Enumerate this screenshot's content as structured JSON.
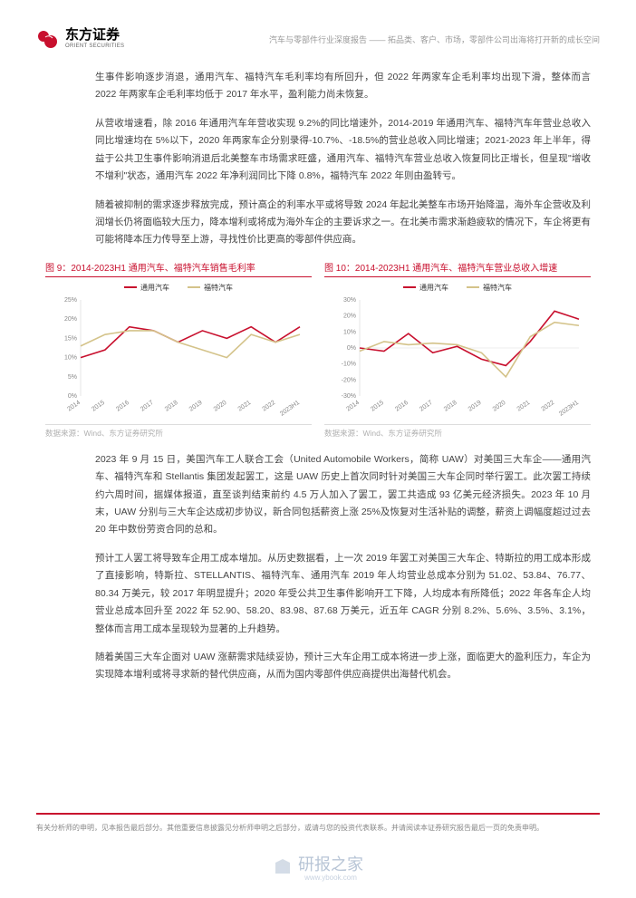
{
  "header": {
    "logo_cn": "东方证券",
    "logo_en": "ORIENT SECURITIES",
    "subtitle": "汽车与零部件行业深度报告 —— 拓品类、客户、市场，零部件公司出海将打开新的成长空间"
  },
  "paragraphs": {
    "p1": "生事件影响逐步消退，通用汽车、福特汽车毛利率均有所回升，但 2022 年两家车企毛利率均出现下滑，整体而言 2022 年两家车企毛利率均低于 2017 年水平，盈利能力尚未恢复。",
    "p2": "从营收增速看，除 2016 年通用汽车年营收实现 9.2%的同比增速外，2014-2019 年通用汽车、福特汽车年营业总收入同比增速均在 5%以下，2020 年两家车企分别录得-10.7%、-18.5%的营业总收入同比增速；2021-2023 年上半年，得益于公共卫生事件影响消退后北美整车市场需求旺盛，通用汽车、福特汽车营业总收入恢复同比正增长，但呈现\"增收不增利\"状态，通用汽车 2022 年净利润同比下降 0.8%，福特汽车 2022 年则由盈转亏。",
    "p3": "随着被抑制的需求逐步释放完成，预计高企的利率水平或将导致 2024 年起北美整车市场开始降温，海外车企营收及利润增长仍将面临较大压力，降本增利或将成为海外车企的主要诉求之一。在北美市需求渐趋疲软的情况下，车企将更有可能将降本压力传导至上游，寻找性价比更高的零部件供应商。",
    "p4": "2023 年 9 月 15 日，美国汽车工人联合工会（United Automobile Workers，简称 UAW）对美国三大车企——通用汽车、福特汽车和 Stellantis 集团发起罢工，这是 UAW 历史上首次同时针对美国三大车企同时举行罢工。此次罢工持续约六周时间，据媒体报道，直至谈判结束前约 4.5 万人加入了罢工，罢工共造成 93 亿美元经济损失。2023 年 10 月末，UAW 分别与三大车企达成初步协议，新合同包括薪资上涨 25%及恢复对生活补贴的调整，薪资上调幅度超过过去 20 年中数份劳资合同的总和。",
    "p5": "预计工人罢工将导致车企用工成本增加。从历史数据看，上一次 2019 年罢工对美国三大车企、特斯拉的用工成本形成了直接影响，特斯拉、STELLANTIS、福特汽车、通用汽车 2019 年人均营业总成本分别为 51.02、53.84、76.77、80.34 万美元，较 2017 年明显提升；2020 年受公共卫生事件影响开工下降，人均成本有所降低；2022 年各车企人均营业总成本回升至 2022 年 52.90、58.20、83.98、87.68 万美元，近五年 CAGR 分别 8.2%、5.6%、3.5%、3.1%，整体而言用工成本呈现较为显著的上升趋势。",
    "p6": "随着美国三大车企面对 UAW 涨薪需求陆续妥协，预计三大车企用工成本将进一步上涨，面临更大的盈利压力，车企为实现降本增利或将寻求新的替代供应商，从而为国内零部件供应商提供出海替代机会。"
  },
  "chart_left": {
    "title": "图 9：2014-2023H1 通用汽车、福特汽车销售毛利率",
    "source": "数据来源：Wind、东方证券研究所",
    "type": "line",
    "x_labels": [
      "2014",
      "2015",
      "2016",
      "2017",
      "2018",
      "2019",
      "2020",
      "2021",
      "2022",
      "2023H1"
    ],
    "y_ticks": [
      "0%",
      "5%",
      "10%",
      "15%",
      "20%",
      "25%"
    ],
    "y_min": 0,
    "y_max": 25,
    "series": [
      {
        "name": "通用汽车",
        "color": "#c8102e",
        "values": [
          10,
          12,
          18,
          17,
          14,
          17,
          15,
          18,
          14,
          18
        ]
      },
      {
        "name": "福特汽车",
        "color": "#d4c38a",
        "values": [
          13,
          16,
          17,
          17,
          14,
          12,
          10,
          16,
          14,
          16
        ]
      }
    ],
    "background_color": "#ffffff",
    "tick_fontsize": 7,
    "line_width": 1.6
  },
  "chart_right": {
    "title": "图 10：2014-2023H1 通用汽车、福特汽车营业总收入增速",
    "source": "数据来源：Wind、东方证券研究所",
    "type": "line",
    "x_labels": [
      "2014",
      "2015",
      "2016",
      "2017",
      "2018",
      "2019",
      "2020",
      "2021",
      "2022",
      "2023H1"
    ],
    "y_ticks": [
      "-30%",
      "-20%",
      "-10%",
      "0%",
      "10%",
      "20%",
      "30%"
    ],
    "y_min": -30,
    "y_max": 30,
    "series": [
      {
        "name": "通用汽车",
        "color": "#c8102e",
        "values": [
          0,
          -2,
          9,
          -3,
          1,
          -7,
          -11,
          4,
          23,
          18
        ]
      },
      {
        "name": "福特汽车",
        "color": "#d4c38a",
        "values": [
          -2,
          4,
          2,
          3,
          2,
          -3,
          -18,
          7,
          16,
          14
        ]
      }
    ],
    "background_color": "#ffffff",
    "tick_fontsize": 7,
    "line_width": 1.6
  },
  "footer": {
    "disclaimer": "有关分析师的申明，见本报告最后部分。其他重要信息披露见分析师申明之后部分，或请与您的投资代表联系。并请阅读本证券研究报告最后一页的免责申明。",
    "watermark_text": "研报之家",
    "watermark_sub": "www.ybook.com"
  },
  "colors": {
    "brand_red": "#c8102e",
    "text": "#444444",
    "muted": "#999999",
    "watermark": "#b8c5d6"
  }
}
